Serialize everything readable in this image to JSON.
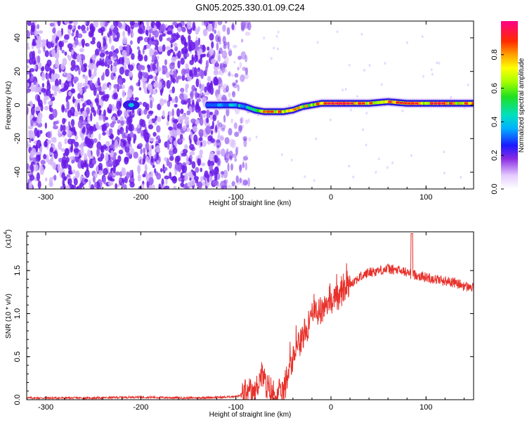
{
  "title": "GN05.2025.330.01.09.C24",
  "colors": {
    "snr_line": "#e8302a",
    "scatter": "#7a22f0",
    "background": "#ffffff"
  },
  "chart_data": [
    {
      "type": "heatmap",
      "name": "spectrogram",
      "xlabel": "Height of straight line (km)",
      "ylabel": "Frequency (Hz)",
      "xlim": [
        -320,
        150
      ],
      "ylim": [
        -50,
        50
      ],
      "xticks": [
        -300,
        -200,
        -100,
        0,
        100
      ],
      "xtick_labels": [
        "-300",
        "-200",
        "-100",
        "0",
        "100"
      ],
      "yticks": [
        -40,
        -20,
        0,
        20,
        40
      ],
      "ytick_labels": [
        "-40",
        "-20",
        "0",
        "20",
        "40"
      ],
      "noise_region_km": [
        -320,
        -110
      ],
      "ridge": {
        "x": [
          -130,
          -110,
          -100,
          -90,
          -80,
          -70,
          -60,
          -50,
          -40,
          -30,
          -20,
          -10,
          0,
          20,
          40,
          60,
          80,
          100,
          120,
          150
        ],
        "y": [
          0,
          0,
          0,
          -1,
          -3,
          -4,
          -4,
          -4,
          -3,
          -1,
          0,
          1,
          1,
          1,
          1,
          2,
          1,
          1,
          1,
          1
        ],
        "amplitude": [
          0.35,
          0.4,
          0.45,
          0.5,
          0.7,
          0.85,
          0.9,
          0.9,
          0.85,
          0.8,
          0.85,
          0.9,
          0.95,
          0.95,
          0.9,
          0.95,
          0.9,
          0.95,
          0.95,
          0.9
        ]
      },
      "colorbar": {
        "label": "Normalized spectral amplitude",
        "range": [
          0,
          1
        ],
        "ticks": [
          0.0,
          0.2,
          0.4,
          0.6,
          0.8
        ],
        "tick_labels": [
          "0.0",
          "0.2",
          "0.4",
          "0.6",
          "0.8"
        ]
      }
    },
    {
      "type": "line",
      "name": "snr",
      "xlabel": "Height of straight line (km)",
      "ylabel": "SNR (10 * v/v)",
      "scale_label": "(x10",
      "scale_exp": "4",
      "xlim": [
        -320,
        150
      ],
      "ylim": [
        0,
        1.95
      ],
      "xticks": [
        -300,
        -200,
        -100,
        0,
        100
      ],
      "xtick_labels": [
        "-300",
        "-200",
        "-100",
        "0",
        "100"
      ],
      "yticks": [
        0.0,
        0.5,
        1.0,
        1.5
      ],
      "ytick_labels": [
        "0.0",
        "0.5",
        "1.0",
        "1.5"
      ],
      "series": [
        {
          "name": "SNR",
          "x": [
            -320,
            -300,
            -250,
            -210,
            -200,
            -150,
            -110,
            -90,
            -80,
            -75,
            -72,
            -68,
            -60,
            -55,
            -50,
            -45,
            -40,
            -35,
            -30,
            -25,
            -20,
            -15,
            -10,
            -5,
            0,
            10,
            20,
            30,
            40,
            50,
            60,
            70,
            80,
            85,
            90,
            100,
            110,
            120,
            130,
            140,
            150
          ],
          "y": [
            0.02,
            0.02,
            0.02,
            0.03,
            0.03,
            0.02,
            0.03,
            0.05,
            0.08,
            0.25,
            0.32,
            0.12,
            0.06,
            0.05,
            0.1,
            0.3,
            0.55,
            0.6,
            0.75,
            0.8,
            0.95,
            1.0,
            1.05,
            1.1,
            1.15,
            1.25,
            1.35,
            1.42,
            1.48,
            1.5,
            1.52,
            1.5,
            1.48,
            1.45,
            1.45,
            1.42,
            1.4,
            1.38,
            1.36,
            1.32,
            1.3
          ]
        }
      ]
    }
  ]
}
